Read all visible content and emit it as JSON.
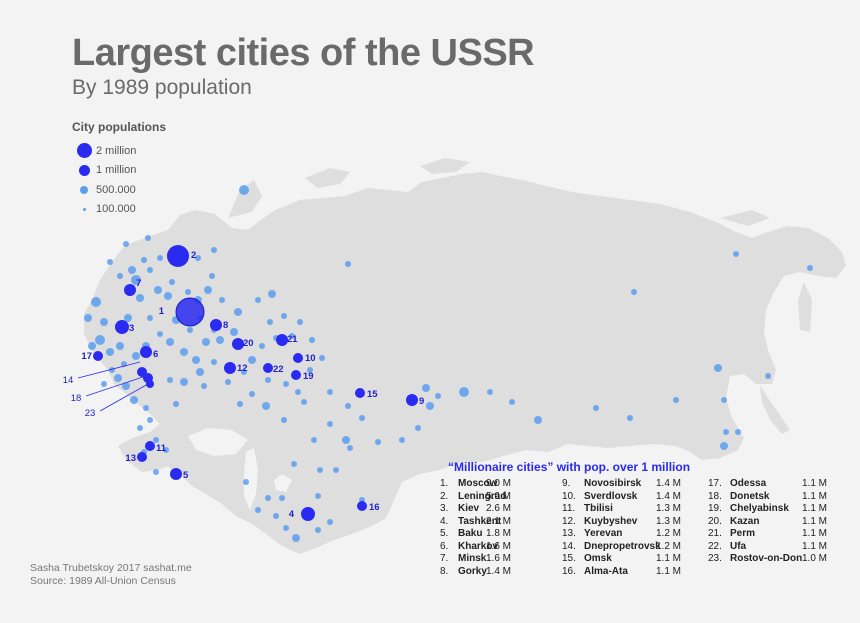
{
  "title": "Largest cities of the USSR",
  "subtitle": "By 1989 population",
  "legend": {
    "title": "City populations",
    "items": [
      {
        "label": "2 million",
        "value": 2000000
      },
      {
        "label": "1 million",
        "value": 1000000
      },
      {
        "label": "500.000",
        "value": 500000
      },
      {
        "label": "100.000",
        "value": 100000
      }
    ]
  },
  "millionaire": {
    "title": "“Millionaire cities” with pop. over 1 million",
    "cities": [
      {
        "rank": "1.",
        "name": "Moscow",
        "pop": "9.0 M"
      },
      {
        "rank": "2.",
        "name": "Leningrad",
        "pop": "5.0 M"
      },
      {
        "rank": "3.",
        "name": "Kiev",
        "pop": "2.6 M"
      },
      {
        "rank": "4.",
        "name": "Tashkent",
        "pop": "2.1 M"
      },
      {
        "rank": "5.",
        "name": "Baku",
        "pop": "1.8 M"
      },
      {
        "rank": "6.",
        "name": "Kharkov",
        "pop": "1.6 M"
      },
      {
        "rank": "7.",
        "name": "Minsk",
        "pop": "1.6 M"
      },
      {
        "rank": "8.",
        "name": "Gorky",
        "pop": "1.4 M"
      },
      {
        "rank": "9.",
        "name": "Novosibirsk",
        "pop": "1.4 M"
      },
      {
        "rank": "10.",
        "name": "Sverdlovsk",
        "pop": "1.4 M"
      },
      {
        "rank": "11.",
        "name": "Tbilisi",
        "pop": "1.3 M"
      },
      {
        "rank": "12.",
        "name": "Kuybyshev",
        "pop": "1.3 M"
      },
      {
        "rank": "13.",
        "name": "Yerevan",
        "pop": "1.2 M"
      },
      {
        "rank": "14.",
        "name": "Dnepropetrovsk",
        "pop": "1.2 M"
      },
      {
        "rank": "15.",
        "name": "Omsk",
        "pop": "1.1 M"
      },
      {
        "rank": "16.",
        "name": "Alma-Ata",
        "pop": "1.1 M"
      },
      {
        "rank": "17.",
        "name": "Odessa",
        "pop": "1.1 M"
      },
      {
        "rank": "18.",
        "name": "Donetsk",
        "pop": "1.1 M"
      },
      {
        "rank": "19.",
        "name": "Chelyabinsk",
        "pop": "1.1 M"
      },
      {
        "rank": "20.",
        "name": "Kazan",
        "pop": "1.1 M"
      },
      {
        "rank": "21.",
        "name": "Perm",
        "pop": "1.1 M"
      },
      {
        "rank": "22.",
        "name": "Ufa",
        "pop": "1.1 M"
      },
      {
        "rank": "23.",
        "name": "Rostov-on-Don",
        "pop": "1.0 M"
      }
    ]
  },
  "credits": {
    "author": "Sasha Trubetskoy 2017 sashat.me",
    "source": "Source: 1989 All-Union Census"
  },
  "colors": {
    "land": "#dedede",
    "water": "#f3f3f3",
    "millionaire_city": "#2a2af0",
    "city": "#5c9ef0"
  }
}
